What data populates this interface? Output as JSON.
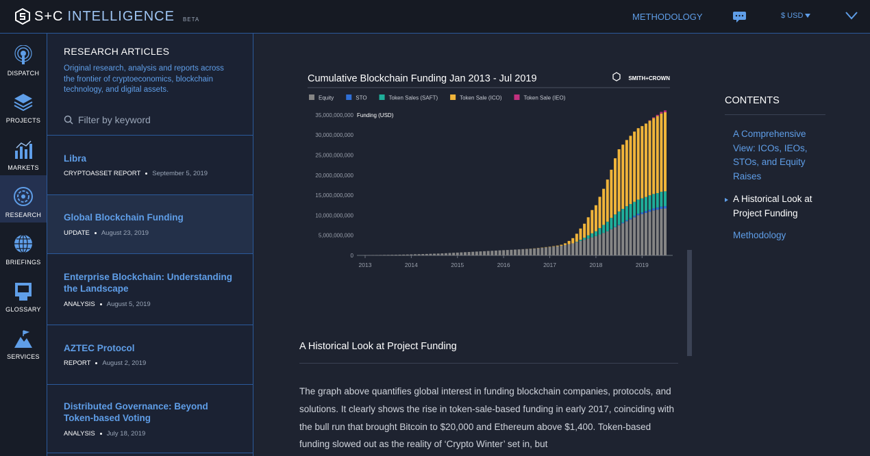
{
  "header": {
    "brand": "S+C",
    "product": "INTELLIGENCE",
    "badge": "BETA",
    "methodology": "METHODOLOGY",
    "currency": "$ USD"
  },
  "nav": [
    "DISPATCH",
    "PROJECTS",
    "MARKETS",
    "RESEARCH",
    "BRIEFINGS",
    "GLOSSARY",
    "SERVICES"
  ],
  "sidebar": {
    "title": "RESEARCH ARTICLES",
    "description": "Original research, analysis and reports across the frontier of cryptoeconomics, blockchain technology, and digital assets.",
    "filter_placeholder": "Filter by keyword",
    "articles": [
      {
        "title": "Libra",
        "type": "CRYPTOASSET REPORT",
        "date": "September 5, 2019"
      },
      {
        "title": "Global Blockchain Funding",
        "type": "UPDATE",
        "date": "August 23, 2019"
      },
      {
        "title": "Enterprise Blockchain: Understanding the Landscape",
        "type": "ANALYSIS",
        "date": "August 5, 2019"
      },
      {
        "title": "AZTEC Protocol",
        "type": "REPORT",
        "date": "August 2, 2019"
      },
      {
        "title": "Distributed Governance: Beyond Token-based Voting",
        "type": "ANALYSIS",
        "date": "July 18, 2019"
      }
    ]
  },
  "chart_data": {
    "type": "bar",
    "stacked": true,
    "title": "Cumulative Blockchain Funding Jan 2013 - Jul 2019",
    "logo": "SMITH+CROWN",
    "y_label": "Funding (USD)",
    "categories": [
      "2013",
      null,
      null,
      null,
      null,
      null,
      null,
      null,
      null,
      null,
      null,
      null,
      "2014",
      null,
      null,
      null,
      null,
      null,
      null,
      null,
      null,
      null,
      null,
      null,
      "2015",
      null,
      null,
      null,
      null,
      null,
      null,
      null,
      null,
      null,
      null,
      null,
      "2016",
      null,
      null,
      null,
      null,
      null,
      null,
      null,
      null,
      null,
      null,
      null,
      "2017",
      null,
      null,
      null,
      null,
      null,
      null,
      null,
      null,
      null,
      null,
      null,
      "2018",
      null,
      null,
      null,
      null,
      null,
      null,
      null,
      null,
      null,
      null,
      null,
      "2019",
      null,
      null,
      null,
      null,
      null,
      null
    ],
    "ylim": [
      0,
      36000000000
    ],
    "yticks": [
      0,
      {
        "value": 5000000000,
        "label": "5,000,000,000"
      },
      {
        "value": 10000000000,
        "label": "10,000,000,000"
      },
      {
        "value": 15000000000,
        "label": "15,000,000,000"
      },
      {
        "value": 20000000000,
        "label": "20,000,000,000"
      },
      {
        "value": 25000000000,
        "label": "25,000,000,000"
      },
      {
        "value": 30000000000,
        "label": "30,000,000,000"
      },
      {
        "value": 35000000000,
        "label": "35,000,000,000"
      }
    ],
    "series": [
      {
        "name": "Equity",
        "color": "#858585",
        "values": [
          50000000.0,
          60000000.0,
          80000000.0,
          90000000.0,
          100000000.0,
          120000000.0,
          130000000.0,
          150000000.0,
          160000000.0,
          180000000.0,
          200000000.0,
          220000000.0,
          250000000.0,
          280000000.0,
          300000000.0,
          330000000.0,
          360000000.0,
          400000000.0,
          430000000.0,
          460000000.0,
          500000000.0,
          550000000.0,
          600000000.0,
          650000000.0,
          700000000.0,
          750000000.0,
          800000000.0,
          850000000.0,
          900000000.0,
          950000000.0,
          1000000000.0,
          1050000000.0,
          1100000000.0,
          1150000000.0,
          1200000000.0,
          1250000000.0,
          1300000000.0,
          1350000000.0,
          1400000000.0,
          1450000000.0,
          1500000000.0,
          1550000000.0,
          1600000000.0,
          1650000000.0,
          1700000000.0,
          1800000000.0,
          1900000000.0,
          2000000000.0,
          2100000000.0,
          2200000000.0,
          2300000000.0,
          2400000000.0,
          2600000000.0,
          2800000000.0,
          3000000000.0,
          3300000000.0,
          3600000000.0,
          3900000000.0,
          4200000000.0,
          4500000000.0,
          4800000000.0,
          5200000000.0,
          5600000000.0,
          6000000000.0,
          6500000000.0,
          7000000000.0,
          7500000000.0,
          8000000000.0,
          8500000000.0,
          9000000000.0,
          9500000000.0,
          10000000000.0,
          10300000000.0,
          10600000000.0,
          10900000000.0,
          11200000000.0,
          11400000000.0,
          11600000000.0,
          11700000000.0
        ]
      },
      {
        "name": "STO",
        "color": "#2f6fd6",
        "values": [
          0,
          0,
          0,
          0,
          0,
          0,
          0,
          0,
          0,
          0,
          0,
          0,
          0,
          0,
          0,
          0,
          0,
          0,
          0,
          0,
          0,
          0,
          0,
          0,
          0,
          0,
          0,
          0,
          0,
          0,
          0,
          0,
          0,
          0,
          0,
          0,
          0,
          0,
          0,
          0,
          0,
          0,
          0,
          0,
          0,
          0,
          0,
          0,
          0,
          0,
          0,
          0,
          0,
          0,
          0,
          0,
          0,
          0,
          0,
          0,
          0,
          0,
          0,
          0,
          50000000.0,
          100000000.0,
          150000000.0,
          200000000.0,
          250000000.0,
          300000000.0,
          350000000.0,
          400000000.0,
          420000000.0,
          450000000.0,
          470000000.0,
          500000000.0,
          520000000.0,
          550000000.0,
          570000000.0
        ]
      },
      {
        "name": "Token Sales (SAFT)",
        "color": "#1fae9a",
        "values": [
          0,
          0,
          0,
          0,
          0,
          0,
          0,
          0,
          0,
          0,
          0,
          0,
          0,
          0,
          0,
          0,
          0,
          0,
          0,
          0,
          0,
          0,
          0,
          0,
          0,
          0,
          0,
          0,
          0,
          0,
          0,
          0,
          0,
          0,
          0,
          0,
          0,
          0,
          0,
          0,
          0,
          0,
          0,
          0,
          0,
          0,
          0,
          0,
          0,
          0,
          0,
          0,
          0,
          0,
          0,
          100000000.0,
          300000000.0,
          500000000.0,
          800000000.0,
          1000000000.0,
          1200000000.0,
          1600000000.0,
          2000000000.0,
          2400000000.0,
          2800000000.0,
          3100000000.0,
          3300000000.0,
          3400000000.0,
          3500000000.0,
          3500000000.0,
          3500000000.0,
          3500000000.0,
          3500000000.0,
          3500000000.0,
          3600000000.0,
          3600000000.0,
          3600000000.0,
          3700000000.0,
          3700000000.0
        ]
      },
      {
        "name": "Token Sale (ICO)",
        "color": "#f0b43a",
        "values": [
          0,
          0,
          0,
          0,
          0,
          0,
          0,
          0,
          0,
          0,
          0,
          0,
          0,
          0,
          0,
          0,
          0,
          0,
          0,
          0,
          0,
          0,
          0,
          0,
          0,
          0,
          0,
          0,
          0,
          0,
          0,
          0,
          0,
          0,
          0,
          0,
          0,
          0,
          0,
          0,
          0,
          10000000.0,
          20000000.0,
          30000000.0,
          40000000.0,
          50000000.0,
          60000000.0,
          70000000.0,
          80000000.0,
          100000000.0,
          150000000.0,
          250000000.0,
          400000000.0,
          800000000.0,
          1300000000.0,
          2000000000.0,
          2800000000.0,
          3500000000.0,
          4500000000.0,
          5800000000.0,
          6500000000.0,
          7800000000.0,
          9000000000.0,
          10500000000.0,
          12000000000.0,
          14000000000.0,
          15500000000.0,
          16000000000.0,
          16500000000.0,
          17000000000.0,
          17500000000.0,
          17800000000.0,
          18000000000.0,
          18300000000.0,
          18600000000.0,
          18900000000.0,
          19200000000.0,
          19500000000.0,
          19700000000.0
        ]
      },
      {
        "name": "Token Sale (IEO)",
        "color": "#c2307e",
        "values": [
          0,
          0,
          0,
          0,
          0,
          0,
          0,
          0,
          0,
          0,
          0,
          0,
          0,
          0,
          0,
          0,
          0,
          0,
          0,
          0,
          0,
          0,
          0,
          0,
          0,
          0,
          0,
          0,
          0,
          0,
          0,
          0,
          0,
          0,
          0,
          0,
          0,
          0,
          0,
          0,
          0,
          0,
          0,
          0,
          0,
          0,
          0,
          0,
          0,
          0,
          0,
          0,
          0,
          0,
          0,
          0,
          0,
          0,
          0,
          0,
          0,
          0,
          0,
          0,
          0,
          0,
          0,
          0,
          0,
          0,
          0,
          0,
          0,
          0,
          100000000.0,
          200000000.0,
          300000000.0,
          400000000.0,
          450000000.0
        ]
      }
    ]
  },
  "article": {
    "heading": "A Historical Look at Project Funding",
    "paragraph": "The graph above quantifies global interest in funding blockchain companies, protocols, and solutions. It clearly shows the rise in token-sale-based funding in early 2017, coinciding with the bull run that brought Bitcoin to $20,000 and Ethereum above $1,400. Token-based funding slowed out as the reality of ‘Crypto Winter’ set in, but"
  },
  "contents": {
    "title": "CONTENTS",
    "items": [
      "A Comprehensive View: ICOs, IEOs, STOs, and Equity Raises",
      "A Historical Look at Project Funding",
      "Methodology"
    ],
    "active": 1
  }
}
